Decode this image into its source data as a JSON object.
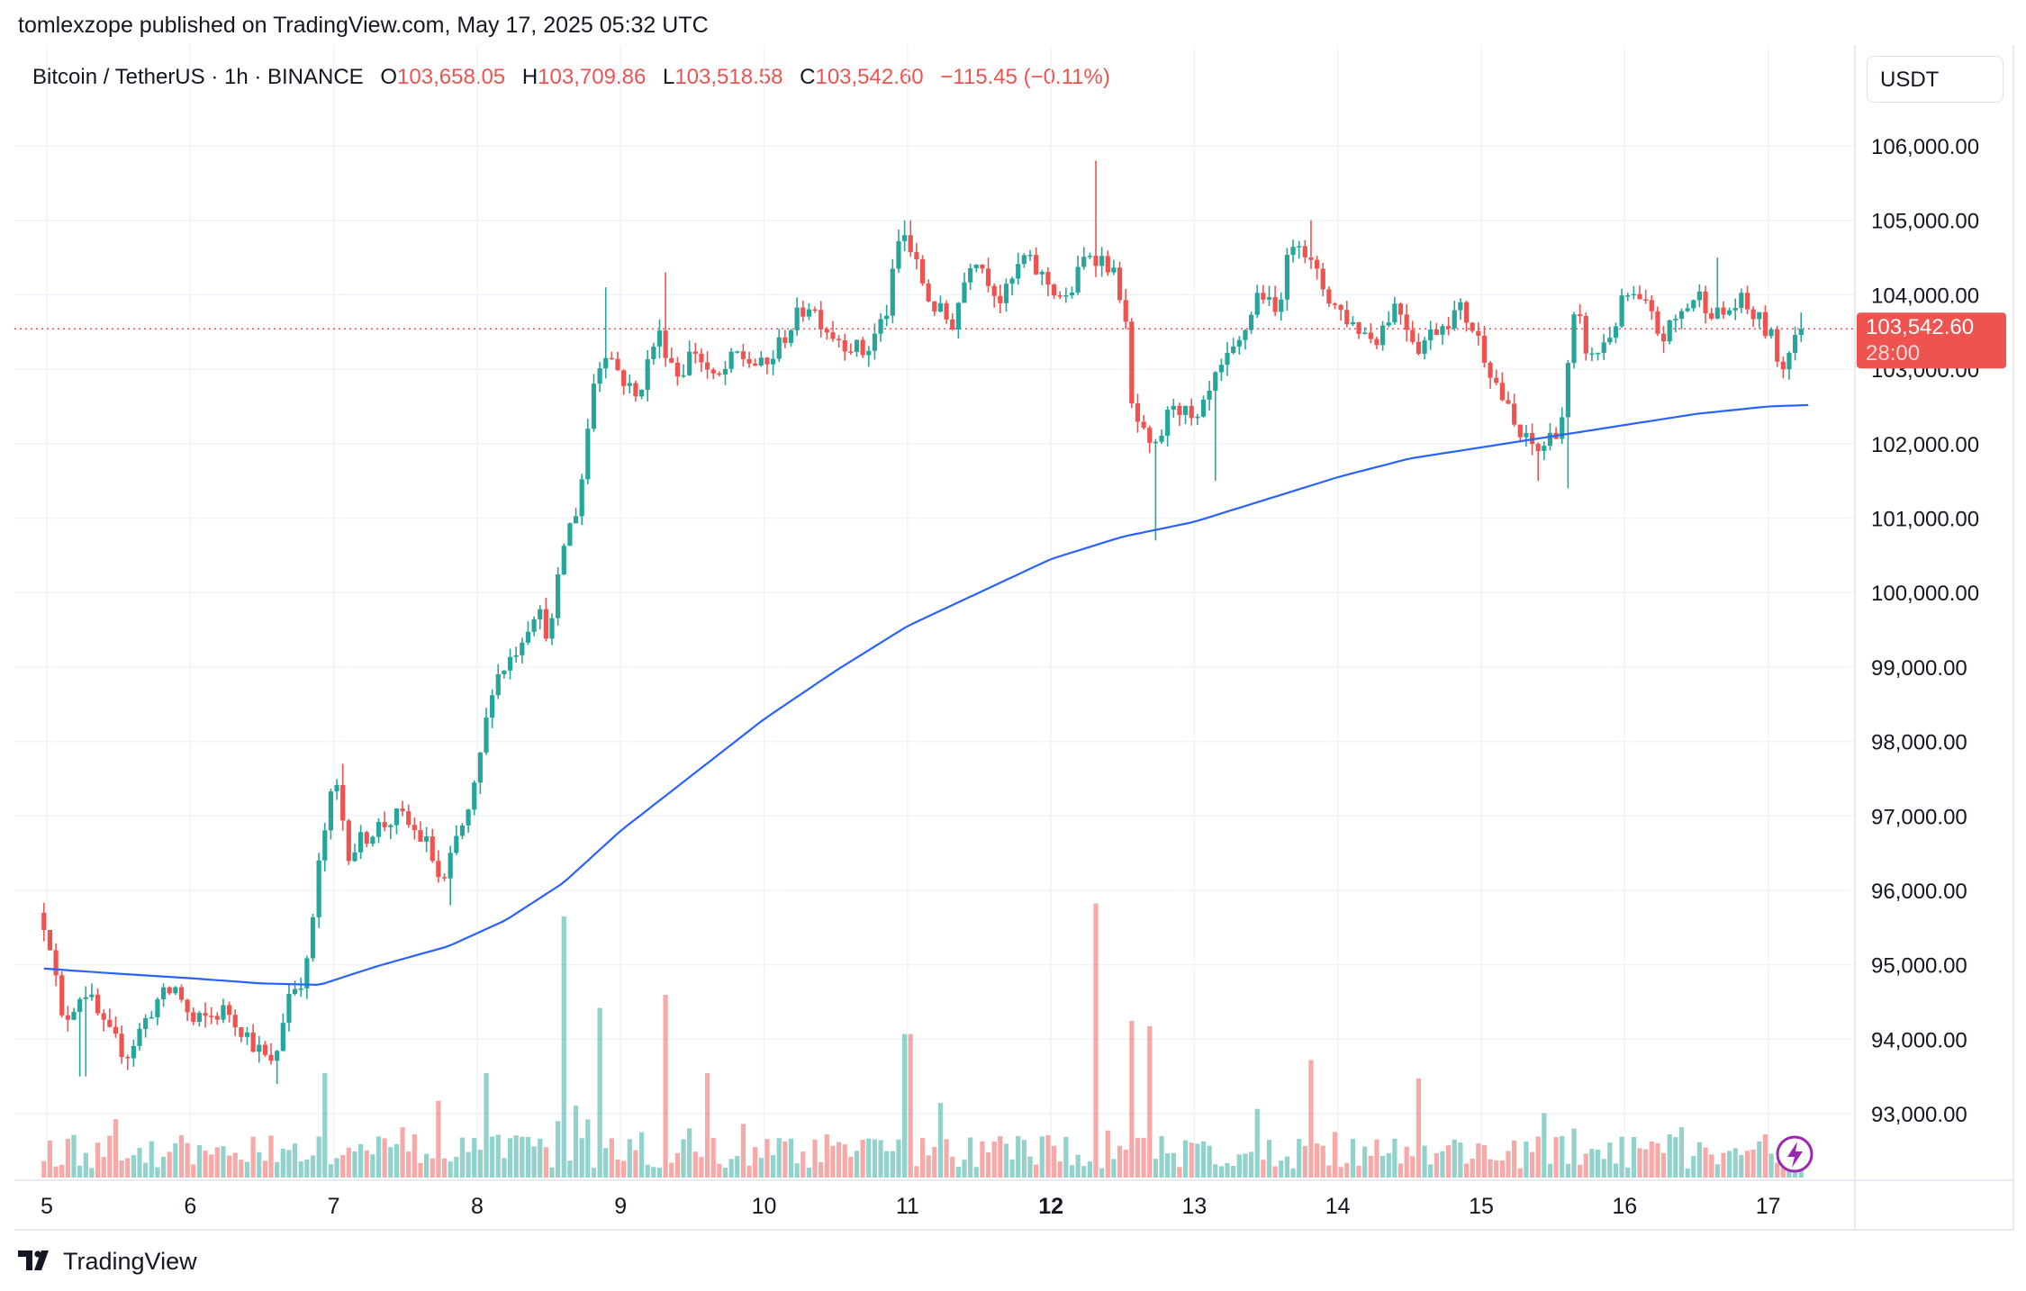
{
  "header": {
    "published": "tomlexzope published on TradingView.com, May 17, 2025 05:32 UTC"
  },
  "symbol": {
    "name": "Bitcoin / TetherUS · 1h · BINANCE",
    "o_label": "O",
    "o_value": "103,658.05",
    "h_label": "H",
    "h_value": "103,709.86",
    "l_label": "L",
    "l_value": "103,518.58",
    "c_label": "C",
    "c_value": "103,542.60",
    "change": "−115.45 (−0.11%)"
  },
  "price_axis": {
    "currency": "USDT",
    "last_price_label": "103,542.60",
    "countdown": "28:00"
  },
  "brand": {
    "name": "TradingView"
  },
  "colors": {
    "up": "#26a69a",
    "down": "#ef5350",
    "ma": "#2962ff",
    "grid": "#f0f3fa"
  },
  "chart_data": {
    "type": "candlestick",
    "symbol": "Bitcoin / TetherUS",
    "interval": "1h",
    "exchange": "BINANCE",
    "y_ticks": [
      "106,000.00",
      "105,000.00",
      "104,000.00",
      "103,000.00",
      "102,000.00",
      "101,000.00",
      "100,000.00",
      "99,000.00",
      "98,000.00",
      "97,000.00",
      "96,000.00",
      "95,000.00",
      "94,000.00",
      "93,000.00"
    ],
    "y_tick_values": [
      106000,
      105000,
      104000,
      103000,
      102000,
      101000,
      100000,
      99000,
      98000,
      97000,
      96000,
      95000,
      94000,
      93000
    ],
    "x_ticks": [
      {
        "label": "5",
        "bold": false,
        "day": 5
      },
      {
        "label": "6",
        "bold": false,
        "day": 6
      },
      {
        "label": "7",
        "bold": false,
        "day": 7
      },
      {
        "label": "8",
        "bold": false,
        "day": 8
      },
      {
        "label": "9",
        "bold": false,
        "day": 9
      },
      {
        "label": "10",
        "bold": false,
        "day": 10
      },
      {
        "label": "11",
        "bold": false,
        "day": 11
      },
      {
        "label": "12",
        "bold": true,
        "day": 12
      },
      {
        "label": "13",
        "bold": false,
        "day": 13
      },
      {
        "label": "14",
        "bold": false,
        "day": 14
      },
      {
        "label": "15",
        "bold": false,
        "day": 15
      },
      {
        "label": "16",
        "bold": false,
        "day": 16
      },
      {
        "label": "17",
        "bold": false,
        "day": 17
      }
    ],
    "ylim": [
      92200,
      107000
    ],
    "xlim_days": [
      4.98,
      17.85
    ],
    "last_price": 103542.6,
    "price_anchors": [
      [
        4.98,
        95700
      ],
      [
        5.05,
        95500
      ],
      [
        5.15,
        94200
      ],
      [
        5.3,
        94700
      ],
      [
        5.45,
        94100
      ],
      [
        5.6,
        93800
      ],
      [
        5.8,
        94500
      ],
      [
        5.95,
        94700
      ],
      [
        6.05,
        94200
      ],
      [
        6.3,
        94400
      ],
      [
        6.5,
        93900
      ],
      [
        6.62,
        93600
      ],
      [
        6.72,
        94600
      ],
      [
        6.85,
        94900
      ],
      [
        6.95,
        96500
      ],
      [
        7.05,
        97500
      ],
      [
        7.15,
        96500
      ],
      [
        7.3,
        96800
      ],
      [
        7.5,
        97000
      ],
      [
        7.7,
        96600
      ],
      [
        7.8,
        96000
      ],
      [
        7.9,
        96700
      ],
      [
        8.0,
        97100
      ],
      [
        8.1,
        98200
      ],
      [
        8.15,
        98800
      ],
      [
        8.3,
        99200
      ],
      [
        8.45,
        99800
      ],
      [
        8.55,
        99400
      ],
      [
        8.65,
        100700
      ],
      [
        8.75,
        101200
      ],
      [
        8.85,
        102800
      ],
      [
        8.93,
        103300
      ],
      [
        9.05,
        102900
      ],
      [
        9.15,
        102600
      ],
      [
        9.3,
        103500
      ],
      [
        9.45,
        102900
      ],
      [
        9.55,
        103300
      ],
      [
        9.7,
        102800
      ],
      [
        9.85,
        103200
      ],
      [
        10.05,
        103000
      ],
      [
        10.2,
        103500
      ],
      [
        10.35,
        103900
      ],
      [
        10.5,
        103500
      ],
      [
        10.75,
        103200
      ],
      [
        10.9,
        103800
      ],
      [
        11.0,
        104900
      ],
      [
        11.2,
        103900
      ],
      [
        11.35,
        103600
      ],
      [
        11.5,
        104600
      ],
      [
        11.7,
        103900
      ],
      [
        11.85,
        104500
      ],
      [
        12.0,
        104200
      ],
      [
        12.15,
        103900
      ],
      [
        12.3,
        104600
      ],
      [
        12.45,
        104400
      ],
      [
        12.55,
        103900
      ],
      [
        12.6,
        102500
      ],
      [
        12.75,
        101800
      ],
      [
        12.9,
        102600
      ],
      [
        13.05,
        102200
      ],
      [
        13.2,
        102900
      ],
      [
        13.35,
        103300
      ],
      [
        13.5,
        104100
      ],
      [
        13.6,
        103700
      ],
      [
        13.75,
        104900
      ],
      [
        13.85,
        104400
      ],
      [
        14.0,
        103900
      ],
      [
        14.15,
        103600
      ],
      [
        14.3,
        103400
      ],
      [
        14.45,
        103900
      ],
      [
        14.6,
        103300
      ],
      [
        14.75,
        103600
      ],
      [
        14.9,
        103800
      ],
      [
        15.0,
        103500
      ],
      [
        15.15,
        102800
      ],
      [
        15.3,
        102100
      ],
      [
        15.45,
        101900
      ],
      [
        15.6,
        102300
      ],
      [
        15.7,
        103800
      ],
      [
        15.8,
        103100
      ],
      [
        15.95,
        103500
      ],
      [
        16.05,
        104000
      ],
      [
        16.2,
        103800
      ],
      [
        16.3,
        103400
      ],
      [
        16.45,
        103800
      ],
      [
        16.55,
        104000
      ],
      [
        16.7,
        103700
      ],
      [
        16.85,
        103900
      ],
      [
        17.0,
        103600
      ],
      [
        17.1,
        103300
      ],
      [
        17.12,
        102800
      ],
      [
        17.18,
        103300
      ],
      [
        17.25,
        103540
      ]
    ],
    "spikes": [
      {
        "day": 5.25,
        "low": 93500
      },
      {
        "day": 6.6,
        "low": 93400
      },
      {
        "day": 7.05,
        "high": 97700
      },
      {
        "day": 7.82,
        "low": 95800
      },
      {
        "day": 8.9,
        "high": 104100
      },
      {
        "day": 9.3,
        "high": 104300
      },
      {
        "day": 11.0,
        "high": 105000
      },
      {
        "day": 12.3,
        "high": 105800
      },
      {
        "day": 12.72,
        "low": 100700
      },
      {
        "day": 13.15,
        "low": 101500
      },
      {
        "day": 13.8,
        "high": 105000
      },
      {
        "day": 15.4,
        "low": 101500
      },
      {
        "day": 15.6,
        "low": 101400
      },
      {
        "day": 16.65,
        "high": 104500
      }
    ],
    "ma_anchors": [
      [
        4.98,
        94950
      ],
      [
        5.5,
        94880
      ],
      [
        6.0,
        94820
      ],
      [
        6.5,
        94750
      ],
      [
        6.9,
        94730
      ],
      [
        7.3,
        94980
      ],
      [
        7.8,
        95250
      ],
      [
        8.2,
        95600
      ],
      [
        8.6,
        96100
      ],
      [
        9.0,
        96800
      ],
      [
        9.5,
        97550
      ],
      [
        10.0,
        98300
      ],
      [
        10.5,
        98950
      ],
      [
        11.0,
        99550
      ],
      [
        11.5,
        100000
      ],
      [
        12.0,
        100450
      ],
      [
        12.5,
        100750
      ],
      [
        13.0,
        100950
      ],
      [
        13.5,
        101250
      ],
      [
        14.0,
        101550
      ],
      [
        14.5,
        101800
      ],
      [
        15.0,
        101950
      ],
      [
        15.5,
        102100
      ],
      [
        16.0,
        102250
      ],
      [
        16.5,
        102400
      ],
      [
        17.0,
        102500
      ],
      [
        17.3,
        102520
      ]
    ],
    "volume_spikes": [
      {
        "day": 8.62,
        "size": 1.0
      },
      {
        "day": 12.3,
        "size": 1.05
      },
      {
        "day": 9.3,
        "size": 0.7
      },
      {
        "day": 8.85,
        "size": 0.65
      },
      {
        "day": 11.0,
        "size": 0.55
      },
      {
        "day": 12.7,
        "size": 0.58
      },
      {
        "day": 12.55,
        "size": 0.6
      },
      {
        "day": 13.8,
        "size": 0.45
      },
      {
        "day": 6.95,
        "size": 0.4
      },
      {
        "day": 8.05,
        "size": 0.4
      },
      {
        "day": 14.55,
        "size": 0.38
      },
      {
        "day": 9.6,
        "size": 0.4
      }
    ]
  }
}
